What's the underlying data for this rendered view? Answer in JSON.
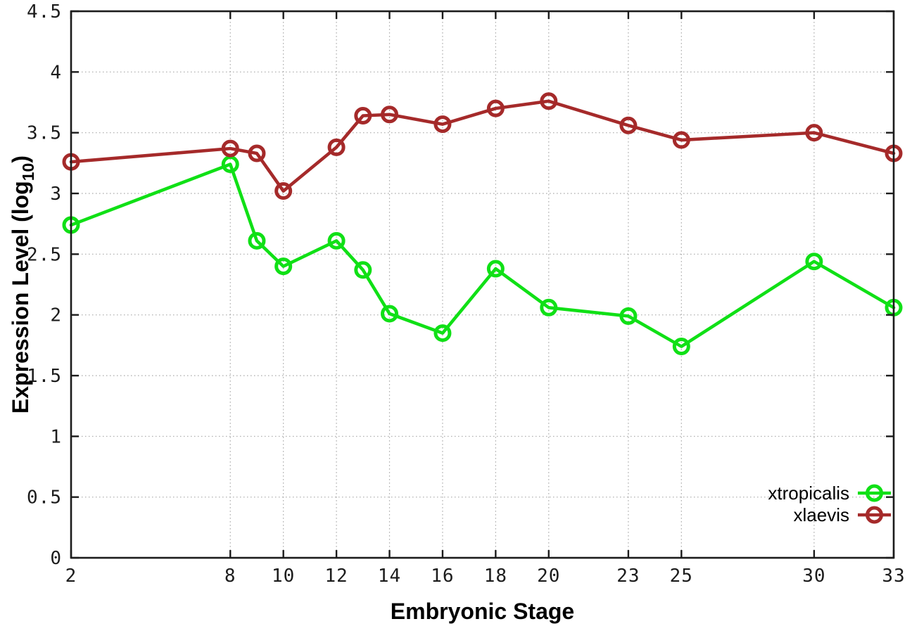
{
  "figure": {
    "background": "#ffffff",
    "border_color": "#1c1c1c",
    "grid_color": "#a8a8a8",
    "tick_label_color": "#1c1c1c"
  },
  "chart_data": {
    "type": "line",
    "title": "",
    "xlabel": "Embryonic Stage",
    "ylabel": "Expression Level (log10)",
    "ylabel_parts": {
      "pre": "Expression Level (log",
      "sub": "10",
      "post": ")"
    },
    "x": [
      2,
      8,
      9,
      10,
      12,
      13,
      14,
      16,
      18,
      20,
      23,
      25,
      30,
      33
    ],
    "x_ticks": [
      "2",
      "8",
      "10",
      "12",
      "14",
      "16",
      "18",
      "20",
      "23",
      "25",
      "30",
      "33"
    ],
    "x_tick_values": [
      2,
      8,
      10,
      12,
      14,
      16,
      18,
      20,
      23,
      25,
      30,
      33
    ],
    "y_ticks": [
      "0",
      "0.5",
      "1",
      "1.5",
      "2",
      "2.5",
      "3",
      "3.5",
      "4",
      "4.5"
    ],
    "y_tick_values": [
      0,
      0.5,
      1,
      1.5,
      2,
      2.5,
      3,
      3.5,
      4,
      4.5
    ],
    "xlim": [
      2,
      33
    ],
    "ylim": [
      0,
      4.5
    ],
    "grid": true,
    "legend_position": "bottom-right",
    "series": [
      {
        "name": "xtropicalis",
        "color": "#10e016",
        "values": [
          2.74,
          3.24,
          2.61,
          2.4,
          2.61,
          2.37,
          2.01,
          1.85,
          2.38,
          2.06,
          1.99,
          1.74,
          2.44,
          2.06
        ]
      },
      {
        "name": "xlaevis",
        "color": "#a52a2a",
        "values": [
          3.26,
          3.37,
          3.33,
          3.02,
          3.38,
          3.64,
          3.65,
          3.57,
          3.7,
          3.76,
          3.56,
          3.44,
          3.5,
          3.33
        ]
      }
    ]
  }
}
